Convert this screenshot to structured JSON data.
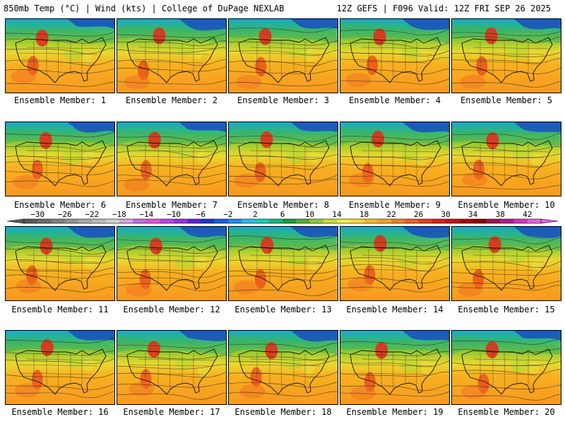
{
  "header": {
    "left": "850mb Temp (°C) | Wind (kts) | College of DuPage NEXLAB",
    "right": "12Z GEFS | F096 Valid: 12Z FRI SEP 26 2025"
  },
  "caption_prefix": "Ensemble Member: ",
  "members": [
    {
      "label": "Ensemble Member: 1"
    },
    {
      "label": "Ensemble Member: 2"
    },
    {
      "label": "Ensemble Member: 3"
    },
    {
      "label": "Ensemble Member: 4"
    },
    {
      "label": "Ensemble Member: 5"
    },
    {
      "label": "Ensemble Member: 6"
    },
    {
      "label": "Ensemble Member: 7"
    },
    {
      "label": "Ensemble Member: 8"
    },
    {
      "label": "Ensemble Member: 9"
    },
    {
      "label": "Ensemble Member: 10"
    },
    {
      "label": "Ensemble Member: 11"
    },
    {
      "label": "Ensemble Member: 12"
    },
    {
      "label": "Ensemble Member: 13"
    },
    {
      "label": "Ensemble Member: 14"
    },
    {
      "label": "Ensemble Member: 15"
    },
    {
      "label": "Ensemble Member: 16"
    },
    {
      "label": "Ensemble Member: 17"
    },
    {
      "label": "Ensemble Member: 18"
    },
    {
      "label": "Ensemble Member: 19"
    },
    {
      "label": "Ensemble Member: 20"
    }
  ],
  "colorbar": {
    "units": "°C",
    "min": -32,
    "max": 44,
    "step": 2,
    "labels": [
      "-30",
      "-26",
      "-22",
      "-18",
      "-14",
      "-10",
      "-6",
      "-2",
      "2",
      "6",
      "10",
      "14",
      "18",
      "22",
      "26",
      "30",
      "34",
      "38",
      "42"
    ],
    "colors": [
      "#5a5a5a",
      "#6c6c6c",
      "#808080",
      "#949494",
      "#a8a8a8",
      "#bcbcbc",
      "#d2d2d2",
      "#d8a4e8",
      "#c070e0",
      "#e850e0",
      "#c040f0",
      "#9830e8",
      "#6020d8",
      "#1838d0",
      "#1460e8",
      "#1890f0",
      "#20c0f0",
      "#10d0c0",
      "#10b880",
      "#10a040",
      "#50b030",
      "#90c830",
      "#c8e030",
      "#f0f040",
      "#f8d830",
      "#f8b820",
      "#f8a020",
      "#f08020",
      "#f06020",
      "#e84018",
      "#e02010",
      "#c81010",
      "#a80808",
      "#900000",
      "#a01050",
      "#b81890",
      "#d830c0",
      "#e860e0"
    ]
  }
}
